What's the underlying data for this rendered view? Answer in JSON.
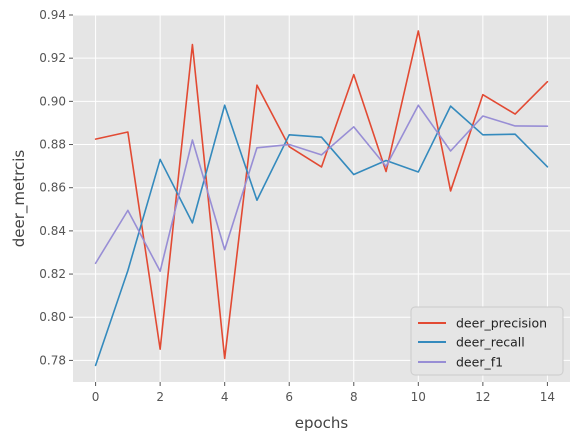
{
  "chart_data": {
    "type": "line",
    "title": "",
    "xlabel": "epochs",
    "ylabel": "deer_metrcis",
    "x": [
      0,
      1,
      2,
      3,
      4,
      5,
      6,
      7,
      8,
      9,
      10,
      11,
      12,
      13,
      14
    ],
    "xlim": [
      -0.7,
      14.7
    ],
    "ylim": [
      0.77,
      0.94
    ],
    "xticks": [
      0,
      2,
      4,
      6,
      8,
      10,
      12,
      14
    ],
    "yticks": [
      0.78,
      0.8,
      0.82,
      0.84,
      0.86,
      0.88,
      0.9,
      0.92,
      0.94
    ],
    "ytick_labels": [
      "0.78",
      "0.80",
      "0.82",
      "0.84",
      "0.86",
      "0.88",
      "0.90",
      "0.92",
      "0.94"
    ],
    "grid": true,
    "legend_position": "lower-right",
    "series": [
      {
        "name": "deer_precision",
        "color": "#E24A33",
        "values": [
          0.8825,
          0.8858,
          0.7852,
          0.9263,
          0.7809,
          0.9075,
          0.879,
          0.8696,
          0.9124,
          0.8675,
          0.9326,
          0.8585,
          0.9031,
          0.8941,
          0.9091
        ]
      },
      {
        "name": "deer_recall",
        "color": "#348ABD",
        "values": [
          0.7777,
          0.8216,
          0.8731,
          0.8437,
          0.8982,
          0.8542,
          0.8845,
          0.8834,
          0.8661,
          0.8726,
          0.8673,
          0.8978,
          0.8845,
          0.8848,
          0.8697
        ]
      },
      {
        "name": "deer_f1",
        "color": "#988ED5",
        "values": [
          0.825,
          0.8495,
          0.8213,
          0.8821,
          0.8313,
          0.8785,
          0.88,
          0.8752,
          0.8882,
          0.8699,
          0.8982,
          0.877,
          0.8932,
          0.8886,
          0.8885
        ]
      }
    ]
  }
}
